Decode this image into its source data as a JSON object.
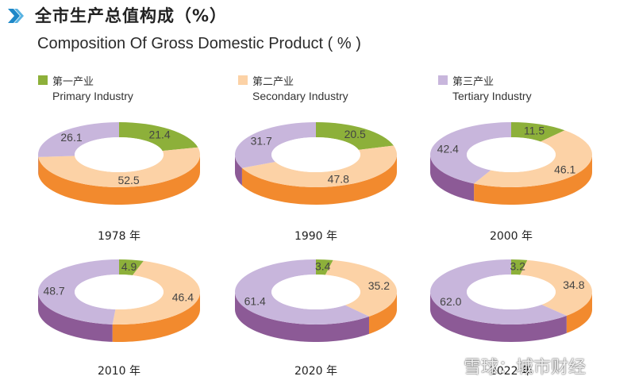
{
  "header": {
    "title_cn": "全市生产总值构成（%）",
    "title_en": "Composition Of Gross Domestic Product ( % )"
  },
  "legend": [
    {
      "label_cn": "第一产业",
      "label_en": "Primary Industry",
      "color": "#8db03a"
    },
    {
      "label_cn": "第二产业",
      "label_en": "Secondary Industry",
      "color": "#fcd2a6"
    },
    {
      "label_cn": "第三产业",
      "label_en": "Tertiary Industry",
      "color": "#c8b6dc"
    }
  ],
  "colors": {
    "primary_top": "#8db03a",
    "primary_side": "#6c8c28",
    "secondary_top": "#fcd2a6",
    "secondary_side": "#f28a2e",
    "tertiary_top": "#c8b6dc",
    "tertiary_side": "#8c5a96",
    "label_text": "#444444"
  },
  "chart_data": {
    "type": "pie",
    "title": "Composition Of Gross Domestic Product ( % )",
    "series_names": [
      "Primary Industry",
      "Secondary Industry",
      "Tertiary Industry"
    ],
    "charts": [
      {
        "year_label": "1978 年",
        "values": [
          21.4,
          52.5,
          26.1
        ],
        "labels": [
          "21.4",
          "52.5",
          "26.1"
        ]
      },
      {
        "year_label": "1990 年",
        "values": [
          20.5,
          47.8,
          31.7
        ],
        "labels": [
          "20.5",
          "47.8",
          "31.7"
        ]
      },
      {
        "year_label": "2000 年",
        "values": [
          11.5,
          46.1,
          42.4
        ],
        "labels": [
          "11.5",
          "46.1",
          "42.4"
        ]
      },
      {
        "year_label": "2010 年",
        "values": [
          4.9,
          46.4,
          48.7
        ],
        "labels": [
          "4.9",
          "46.4",
          "48.7"
        ]
      },
      {
        "year_label": "2020 年",
        "values": [
          3.4,
          35.2,
          61.4
        ],
        "labels": [
          "3.4",
          "35.2",
          "61.4"
        ]
      },
      {
        "year_label": "2022 年",
        "values": [
          3.2,
          34.8,
          62.0
        ],
        "labels": [
          "3.2",
          "34.8",
          "62.0"
        ]
      }
    ]
  },
  "watermark": "雪球：城市财经"
}
